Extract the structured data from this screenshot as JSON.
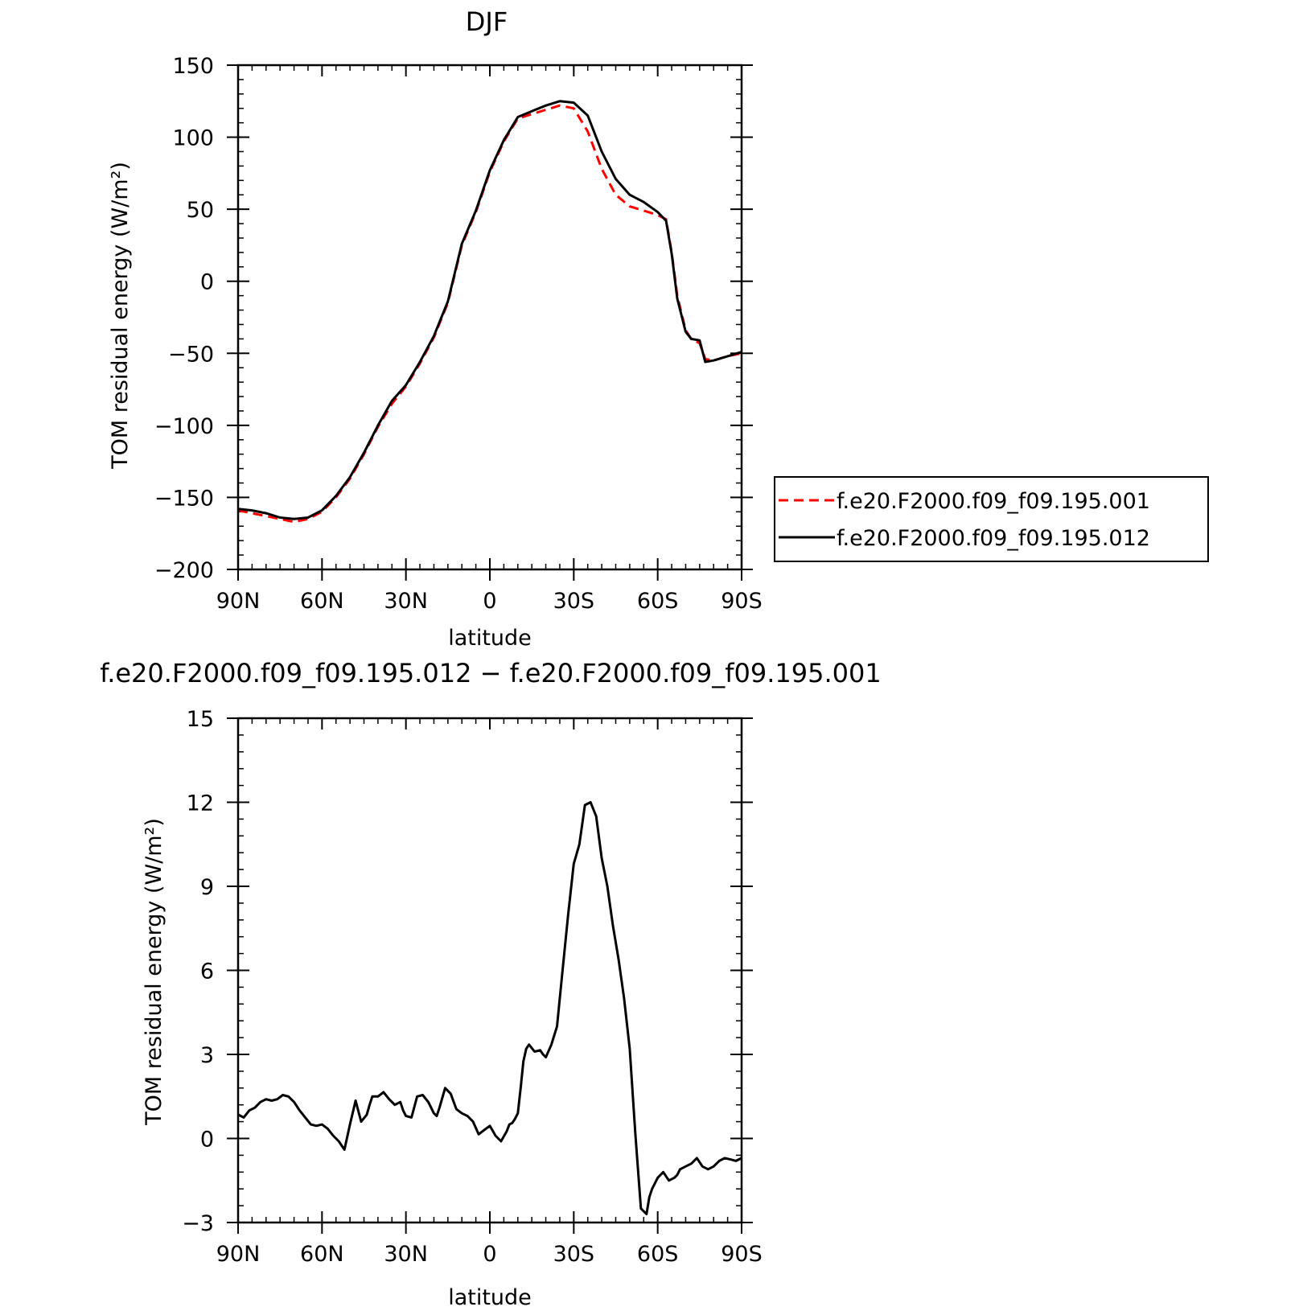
{
  "chart_data": [
    {
      "type": "line",
      "title": "DJF",
      "xlabel": "latitude",
      "ylabel": "TOM residual energy (W/m²)",
      "x_tick_labels": [
        "90N",
        "60N",
        "30N",
        "0",
        "30S",
        "60S",
        "90S"
      ],
      "x_ticks": [
        -90,
        -60,
        -30,
        0,
        30,
        60,
        90
      ],
      "y_tick_labels": [
        "150",
        "100",
        "50",
        "0",
        "−50",
        "−100",
        "−150",
        "−200"
      ],
      "y_ticks": [
        150,
        100,
        50,
        0,
        -50,
        -100,
        -150,
        -200
      ],
      "xlim": [
        -90,
        90
      ],
      "ylim": [
        -200,
        150
      ],
      "legend": "right",
      "series": [
        {
          "name": "f.e20.F2000.f09_f09.195.001",
          "color": "#ff0000",
          "dash": "dashed",
          "x": [
            -90,
            -85,
            -80,
            -75,
            -70,
            -65,
            -60,
            -55,
            -50,
            -45,
            -40,
            -35,
            -30,
            -25,
            -20,
            -15,
            -10,
            -5,
            0,
            5,
            10,
            15,
            20,
            25,
            30,
            35,
            40,
            45,
            50,
            55,
            60,
            63,
            65,
            67,
            70,
            72,
            75,
            77,
            80,
            85,
            90
          ],
          "y": [
            -159,
            -161,
            -163,
            -165,
            -167,
            -165,
            -160,
            -150,
            -137,
            -120,
            -101,
            -85,
            -73,
            -57,
            -39,
            -15,
            25,
            48,
            76,
            97,
            113,
            116,
            119,
            122,
            120,
            104,
            78,
            60,
            52,
            49,
            46,
            43,
            20,
            -10,
            -34,
            -40,
            -43,
            -54,
            -55,
            -52,
            -50
          ]
        },
        {
          "name": "f.e20.F2000.f09_f09.195.012",
          "color": "#000000",
          "dash": "solid",
          "x": [
            -90,
            -85,
            -80,
            -75,
            -70,
            -65,
            -60,
            -55,
            -50,
            -45,
            -40,
            -35,
            -30,
            -25,
            -20,
            -15,
            -10,
            -5,
            0,
            5,
            10,
            15,
            20,
            25,
            30,
            35,
            40,
            45,
            50,
            55,
            60,
            63,
            65,
            67,
            70,
            72,
            75,
            77,
            80,
            85,
            90
          ],
          "y": [
            -158,
            -159,
            -161,
            -164,
            -165,
            -164,
            -159,
            -149,
            -136,
            -119,
            -100,
            -83,
            -72,
            -56,
            -38,
            -14,
            26,
            49,
            77,
            98,
            114,
            118,
            122,
            125,
            124,
            115,
            90,
            71,
            60,
            55,
            48,
            42,
            19,
            -12,
            -35,
            -40,
            -41,
            -56,
            -55,
            -52,
            -49
          ]
        }
      ]
    },
    {
      "type": "line",
      "title": "f.e20.F2000.f09_f09.195.012 − f.e20.F2000.f09_f09.195.001",
      "xlabel": "latitude",
      "ylabel": "TOM residual energy (W/m²)",
      "x_tick_labels": [
        "90N",
        "60N",
        "30N",
        "0",
        "30S",
        "60S",
        "90S"
      ],
      "x_ticks": [
        -90,
        -60,
        -30,
        0,
        30,
        60,
        90
      ],
      "y_tick_labels": [
        "15",
        "12",
        "9",
        "6",
        "3",
        "0",
        "−3"
      ],
      "y_ticks": [
        15,
        12,
        9,
        6,
        3,
        0,
        -3
      ],
      "xlim": [
        -90,
        90
      ],
      "ylim": [
        -3,
        15
      ],
      "series": [
        {
          "color": "#000000",
          "x": [
            -90,
            -88,
            -86,
            -84,
            -82,
            -80,
            -78,
            -76,
            -74,
            -72,
            -70,
            -68,
            -66,
            -64,
            -62,
            -60,
            -58,
            -56,
            -54,
            -52,
            -50,
            -48,
            -46,
            -44,
            -43,
            -42,
            -40,
            -38,
            -36,
            -34,
            -32,
            -31,
            -30,
            -28,
            -26,
            -24,
            -22,
            -20,
            -19,
            -18,
            -16,
            -14,
            -12,
            -10,
            -8,
            -6,
            -4,
            -2,
            0,
            2,
            4,
            6,
            7,
            8,
            9,
            10,
            11,
            12,
            13,
            14,
            16,
            18,
            19,
            20,
            22,
            24,
            26,
            28,
            30,
            32,
            34,
            36,
            38,
            40,
            42,
            44,
            46,
            48,
            50,
            52,
            54,
            56,
            57,
            58,
            60,
            62,
            64,
            66,
            67,
            68,
            70,
            72,
            74,
            76,
            78,
            80,
            82,
            84,
            86,
            88,
            90
          ],
          "y": [
            0.85,
            0.75,
            1.0,
            1.1,
            1.3,
            1.4,
            1.35,
            1.4,
            1.55,
            1.5,
            1.3,
            1.0,
            0.75,
            0.5,
            0.45,
            0.5,
            0.35,
            0.1,
            -0.1,
            -0.4,
            0.5,
            1.35,
            0.6,
            0.85,
            1.2,
            1.5,
            1.5,
            1.65,
            1.4,
            1.2,
            1.3,
            1.0,
            0.8,
            0.75,
            1.5,
            1.55,
            1.3,
            0.9,
            0.8,
            1.1,
            1.8,
            1.6,
            1.05,
            0.9,
            0.8,
            0.6,
            0.15,
            0.3,
            0.45,
            0.1,
            -0.1,
            0.25,
            0.5,
            0.55,
            0.7,
            0.9,
            1.8,
            2.75,
            3.2,
            3.35,
            3.1,
            3.15,
            3.0,
            2.9,
            3.35,
            4.0,
            6.0,
            8.0,
            9.8,
            10.5,
            11.9,
            12.0,
            11.5,
            10.0,
            9.0,
            7.6,
            6.4,
            5.0,
            3.2,
            0.2,
            -2.5,
            -2.7,
            -2.1,
            -1.8,
            -1.4,
            -1.2,
            -1.5,
            -1.4,
            -1.3,
            -1.1,
            -1.0,
            -0.9,
            -0.7,
            -1.0,
            -1.1,
            -1.0,
            -0.8,
            -0.7,
            -0.75,
            -0.8,
            -0.7
          ]
        }
      ]
    }
  ]
}
